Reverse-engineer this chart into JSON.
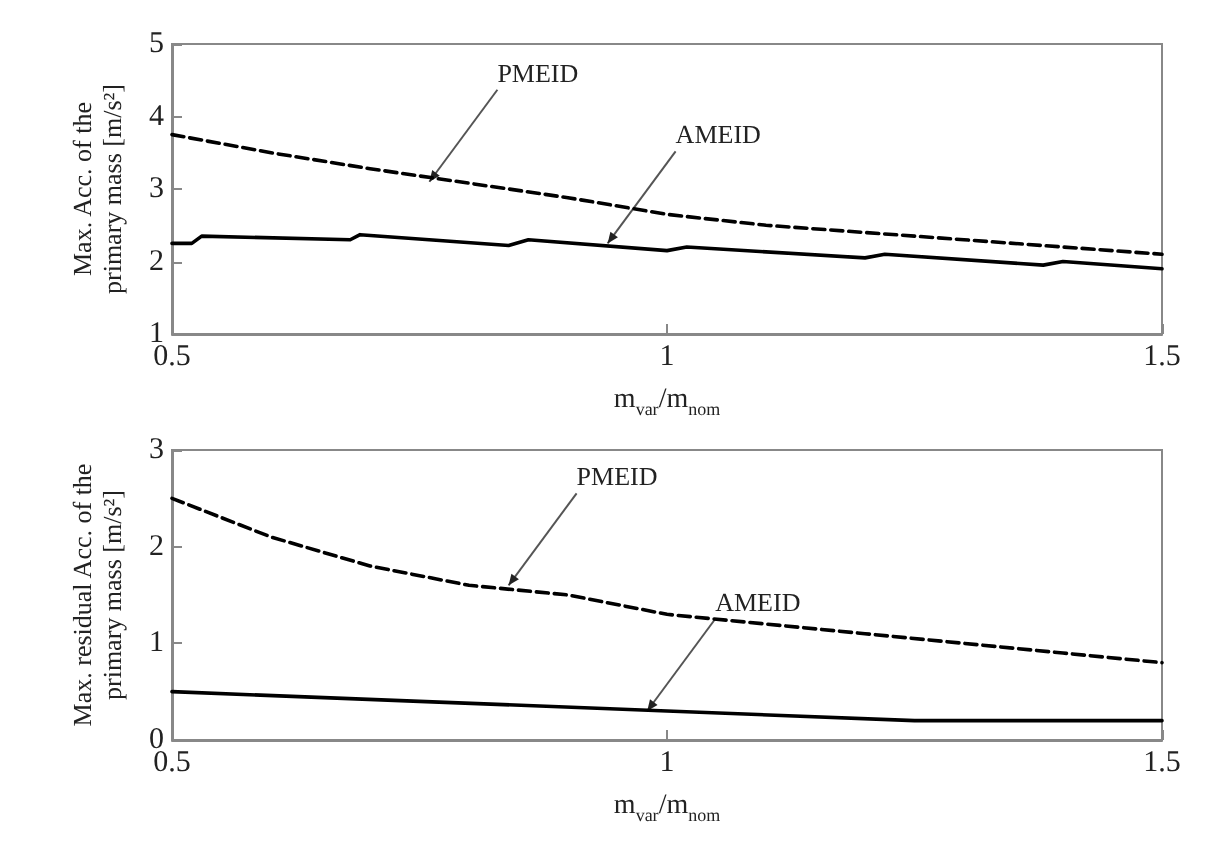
{
  "chart_data": [
    {
      "type": "line",
      "xlabel": "m$_{var}$/m$_{nom}$",
      "ylabel": "Max. Acc. of the primary mass [m/s²]",
      "xlim": [
        0.5,
        1.5
      ],
      "xticks": [
        0.5,
        1,
        1.5
      ],
      "ylim": [
        1,
        5
      ],
      "yticks": [
        1,
        2,
        3,
        4,
        5
      ],
      "grid": false,
      "marker": "none",
      "series": [
        {
          "color": "#000000",
          "line_style": "dashed",
          "x": [
            0.5,
            0.6,
            0.7,
            0.8,
            0.9,
            1.0,
            1.1,
            1.2,
            1.3,
            1.4,
            1.5
          ],
          "values": [
            3.75,
            3.5,
            3.28,
            3.08,
            2.88,
            2.65,
            2.5,
            2.4,
            2.3,
            2.2,
            2.1
          ]
        },
        {
          "color": "#000000",
          "line_style": "solid",
          "x": [
            0.5,
            0.52,
            0.53,
            0.68,
            0.69,
            0.84,
            0.86,
            1.0,
            1.02,
            1.2,
            1.22,
            1.38,
            1.4,
            1.5
          ],
          "values": [
            2.25,
            2.25,
            2.35,
            2.3,
            2.37,
            2.22,
            2.3,
            2.15,
            2.2,
            2.05,
            2.1,
            1.95,
            2.0,
            1.9
          ]
        }
      ],
      "annotations": [
        {
          "text": "PMEID",
          "x": 0.76,
          "y": 3.1
        },
        {
          "text": "AMEID",
          "x": 0.94,
          "y": 2.25
        }
      ]
    },
    {
      "type": "line",
      "xlabel": "m$_{var}$/m$_{nom}$",
      "ylabel": "Max. residual Acc. of the primary mass [m/s²]",
      "xlim": [
        0.5,
        1.5
      ],
      "xticks": [
        0.5,
        1,
        1.5
      ],
      "ylim": [
        0,
        3
      ],
      "yticks": [
        0,
        1,
        2,
        3
      ],
      "grid": false,
      "marker": "none",
      "series": [
        {
          "color": "#000000",
          "line_style": "dashed",
          "x": [
            0.5,
            0.6,
            0.7,
            0.8,
            0.9,
            1.0,
            1.1,
            1.2,
            1.3,
            1.4,
            1.5
          ],
          "values": [
            2.5,
            2.1,
            1.8,
            1.6,
            1.5,
            1.3,
            1.2,
            1.1,
            1.0,
            0.9,
            0.8
          ]
        },
        {
          "color": "#000000",
          "line_style": "solid",
          "x": [
            0.5,
            0.75,
            1.0,
            1.25,
            1.5
          ],
          "values": [
            0.5,
            0.4,
            0.3,
            0.2,
            0.2
          ]
        }
      ],
      "annotations": [
        {
          "text": "PMEID",
          "x": 0.84,
          "y": 1.6
        },
        {
          "text": "AMEID",
          "x": 0.98,
          "y": 0.3
        }
      ]
    }
  ]
}
